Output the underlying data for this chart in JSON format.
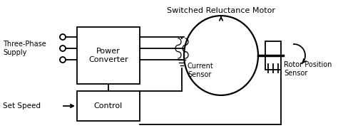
{
  "bg_color": "#ffffff",
  "line_color": "#000000",
  "title": "Switched Reluctance Motor",
  "label_power_converter": "Power\nConverter",
  "label_control": "Control",
  "label_three_phase": "Three-Phase\nSupply",
  "label_set_speed": "Set Speed",
  "label_current_sensor": "Current\nSensor",
  "label_rotor_position": "Rotor Position\nSensor",
  "figw": 4.74,
  "figh": 1.87,
  "dpi": 100
}
